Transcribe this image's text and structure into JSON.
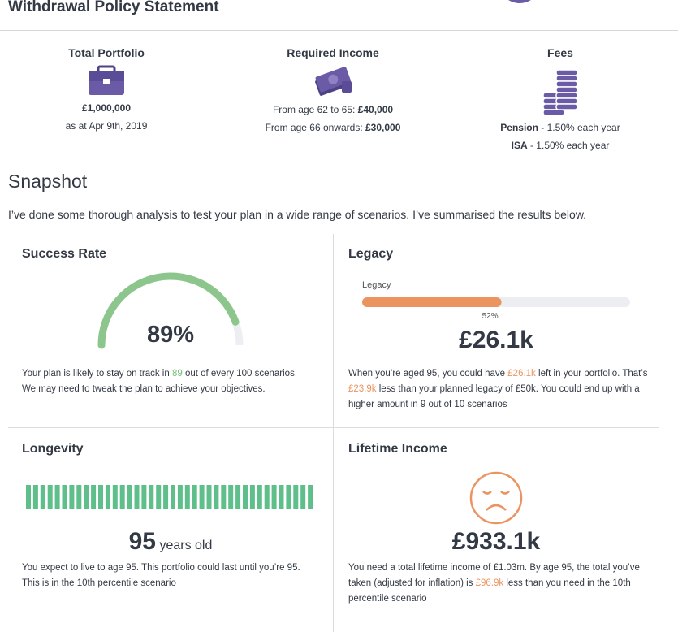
{
  "header": {
    "title": "Withdrawal Policy Statement"
  },
  "summary": [
    {
      "title": "Total Portfolio",
      "amount": "£1,000,000",
      "date": "as at Apr 9th, 2019"
    },
    {
      "title": "Required Income",
      "lines": [
        {
          "label": "From age 62 to 65: ",
          "value": "£40,000"
        },
        {
          "label": "From age 66 onwards: ",
          "value": "£30,000"
        }
      ]
    },
    {
      "title": "Fees",
      "lines": [
        {
          "name": "Pension",
          "text": " - 1.50% each year"
        },
        {
          "name": "ISA",
          "text": " - 1.50% each year"
        }
      ]
    }
  ],
  "snapshot": {
    "title": "Snapshot",
    "intro": "I’ve done some thorough analysis to test your plan in a wide range of scenarios. I’ve summarised the results below."
  },
  "cards": {
    "success_rate": {
      "title": "Success Rate",
      "gauge": {
        "value": 89,
        "label": "89%"
      },
      "text": [
        "Your plan is likely to stay on track in ",
        "89",
        " out of every 100 scenarios.",
        "We may need to tweak the plan to achieve your objectives."
      ]
    },
    "legacy": {
      "title": "Legacy",
      "bar_label": "Legacy",
      "bar": {
        "value": 52,
        "label": "52%"
      },
      "amount": "£26.1k",
      "text": [
        "When you’re aged 95, you could have ",
        "£26.1k",
        " left in your portfolio. That’s ",
        "£23.9k",
        " less than your planned legacy of £50k. You could end up with a higher amount in 9 out of 10 scenarios"
      ]
    },
    "longevity": {
      "title": "Longevity",
      "age": "95",
      "unit": "years old",
      "text": "You expect to live to age 95. This portfolio could last until you’re 95. This is in the 10th percentile scenario"
    },
    "lifetime_income": {
      "title": "Lifetime Income",
      "amount": "£933.1k",
      "text": [
        "You need a total lifetime income of £1.03m. By age 95, the total you’ve taken (adjusted for inflation) is ",
        "£96.9k",
        " less than you need in the 10th percentile scenario"
      ]
    }
  }
}
